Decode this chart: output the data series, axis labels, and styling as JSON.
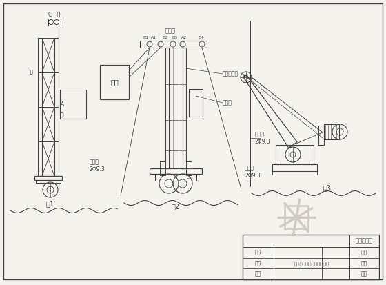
{
  "bg_color": "#f5f3ee",
  "line_color": "#444444",
  "border_color": "#333333",
  "title_company": "施光零工班",
  "drawing_title": "物料提升机安装施工示意图",
  "fig1_label": "图1",
  "fig2_label": "图2",
  "fig3_label": "图3",
  "table_labels": [
    "设计",
    "制图",
    "审核"
  ],
  "table_right_labels": [
    "编号",
    "图号",
    "日期"
  ],
  "wind_rope_label1": "缆风绳\n2Φ9.3",
  "wind_rope_label2": "缆风绳\n2Φ9.3",
  "hoist_label": "提升钢丝绳",
  "pulley_label": "顶滑轮",
  "cage_label": "吊栏",
  "counterweight_label": "对重架",
  "label_C": "C",
  "label_H": "H",
  "label_B": "B",
  "label_A": "A",
  "label_D": "D",
  "labels_top": [
    "B1",
    "A1",
    "B2",
    "B3",
    "A2",
    "B4"
  ],
  "watermark_color": "#d0ccc4"
}
